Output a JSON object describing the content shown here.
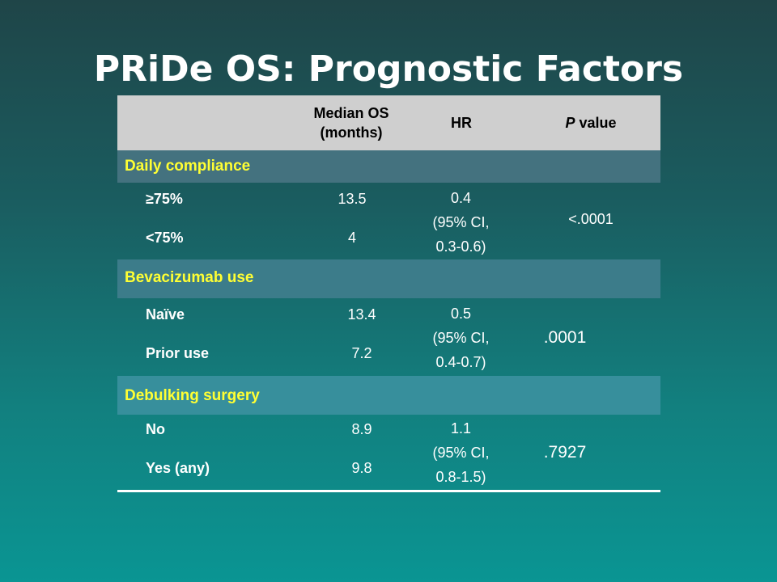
{
  "title": "PRiDe OS: Prognostic Factors",
  "table": {
    "headers": {
      "col_label": "",
      "median_os": "Median OS (months)",
      "hr": "HR",
      "p_italic": "P",
      "p_rest": " value"
    },
    "sections": [
      {
        "name": "Daily compliance",
        "rows": [
          {
            "label": "≥75%",
            "median": "13.5"
          },
          {
            "label": "<75%",
            "median": "4"
          }
        ],
        "hr_value": "0.4",
        "hr_ci_label": "(95% CI,",
        "hr_ci_range": "0.3-0.6)",
        "p_value": "<.0001"
      },
      {
        "name": "Bevacizumab use",
        "rows": [
          {
            "label": "Naïve",
            "median": "13.4"
          },
          {
            "label": "Prior use",
            "median": "7.2"
          }
        ],
        "hr_value": "0.5",
        "hr_ci_label": "(95% CI,",
        "hr_ci_range": "0.4-0.7)",
        "p_value": ".0001"
      },
      {
        "name": "Debulking surgery",
        "rows": [
          {
            "label": "No",
            "median": "8.9"
          },
          {
            "label": "Yes (any)",
            "median": "9.8"
          }
        ],
        "hr_value": "1.1",
        "hr_ci_label": "(95% CI,",
        "hr_ci_range": "0.8-1.5)",
        "p_value": ".7927"
      }
    ]
  },
  "colors": {
    "section_band_1": "#44727f",
    "section_band_2": "#3c7c8a",
    "section_band_3": "#378f9c",
    "section_text": "#ffff33",
    "header_bg": "#cfcfcf"
  }
}
